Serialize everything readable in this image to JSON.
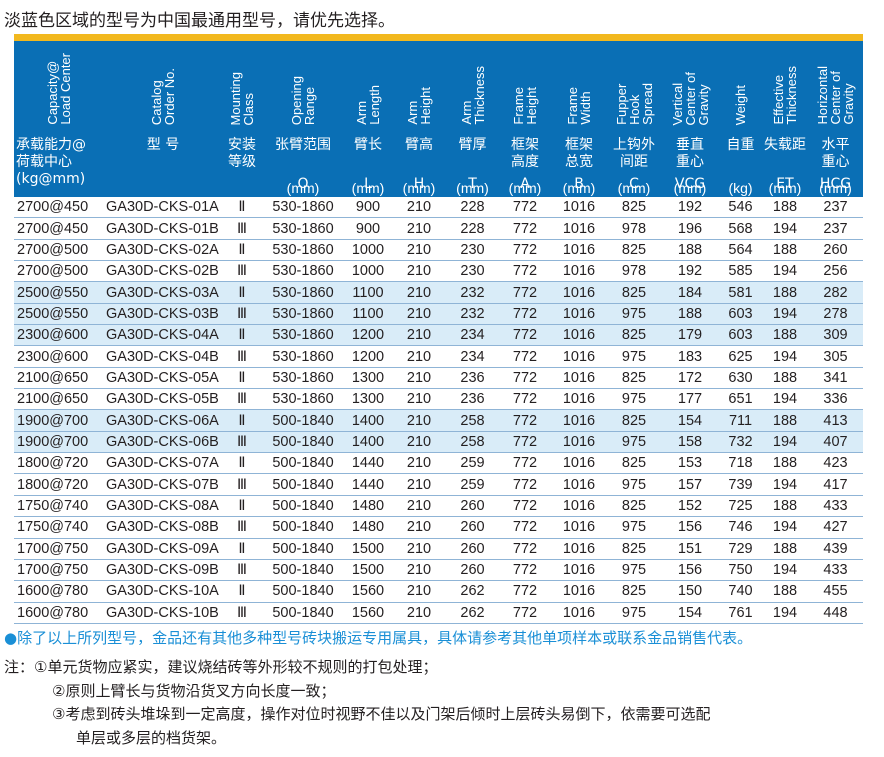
{
  "title": "淡蓝色区域的型号为中国最通用型号，请优先选择。",
  "accent_colors": {
    "header_blue": "#0a6fb5",
    "highlight_row": "#d9ecf8",
    "top_bar": "#f2b81e",
    "note_blue": "#1a8fd6"
  },
  "headers": [
    {
      "en": "Capacity@\nLoad Center",
      "cn": "承载能力@\n荷载中心\n(kg@mm)",
      "sym": "",
      "unit": ""
    },
    {
      "en": "Catalog\nOrder No.",
      "cn": "型 号",
      "sym": "",
      "unit": ""
    },
    {
      "en": "Mounting\nClass",
      "cn": "安装\n等级",
      "sym": "",
      "unit": ""
    },
    {
      "en": "Opening\nRange",
      "cn": "张臂范围",
      "sym": "O",
      "unit": "(mm)"
    },
    {
      "en": "Arm\nLength",
      "cn": "臂长",
      "sym": "L",
      "unit": "(mm)"
    },
    {
      "en": "Arm\nHeight",
      "cn": "臂高",
      "sym": "H",
      "unit": "(mm)"
    },
    {
      "en": "Arm\nThickness",
      "cn": "臂厚",
      "sym": "T",
      "unit": "(mm)"
    },
    {
      "en": "Frame\nHeight",
      "cn": "框架\n高度",
      "sym": "A",
      "unit": "(mm)"
    },
    {
      "en": "Frame\nWidth",
      "cn": "框架\n总宽",
      "sym": "B",
      "unit": "(mm)"
    },
    {
      "en": "Fupper\nHook\nSpread",
      "cn": "上钩外\n间距",
      "sym": "C",
      "unit": "(mm)"
    },
    {
      "en": "Vertical\nCenter of\nGravity",
      "cn": "垂直\n重心",
      "sym": "VCG",
      "unit": "(mm)"
    },
    {
      "en": "Weight",
      "cn": "自重",
      "sym": "",
      "unit": "(kg)"
    },
    {
      "en": "Effective\nThickness",
      "cn": "失载距",
      "sym": "ET",
      "unit": "(mm)"
    },
    {
      "en": "Horizontal\nCenter of\nGravity",
      "cn": "水平\n重心",
      "sym": "HCG",
      "unit": "(mm)"
    }
  ],
  "rows": [
    {
      "hl": false,
      "cells": [
        "2700@450",
        "GA30D-CKS-01A",
        "Ⅱ",
        "530-1860",
        "900",
        "210",
        "228",
        "772",
        "1016",
        "825",
        "192",
        "546",
        "188",
        "237"
      ]
    },
    {
      "hl": false,
      "cells": [
        "2700@450",
        "GA30D-CKS-01B",
        "Ⅲ",
        "530-1860",
        "900",
        "210",
        "228",
        "772",
        "1016",
        "978",
        "196",
        "568",
        "194",
        "237"
      ]
    },
    {
      "hl": false,
      "cells": [
        "2700@500",
        "GA30D-CKS-02A",
        "Ⅱ",
        "530-1860",
        "1000",
        "210",
        "230",
        "772",
        "1016",
        "825",
        "188",
        "564",
        "188",
        "260"
      ]
    },
    {
      "hl": false,
      "cells": [
        "2700@500",
        "GA30D-CKS-02B",
        "Ⅲ",
        "530-1860",
        "1000",
        "210",
        "230",
        "772",
        "1016",
        "978",
        "192",
        "585",
        "194",
        "256"
      ]
    },
    {
      "hl": true,
      "cells": [
        "2500@550",
        "GA30D-CKS-03A",
        "Ⅱ",
        "530-1860",
        "1100",
        "210",
        "232",
        "772",
        "1016",
        "825",
        "184",
        "581",
        "188",
        "282"
      ]
    },
    {
      "hl": true,
      "cells": [
        "2500@550",
        "GA30D-CKS-03B",
        "Ⅲ",
        "530-1860",
        "1100",
        "210",
        "232",
        "772",
        "1016",
        "975",
        "188",
        "603",
        "194",
        "278"
      ]
    },
    {
      "hl": true,
      "cells": [
        "2300@600",
        "GA30D-CKS-04A",
        "Ⅱ",
        "530-1860",
        "1200",
        "210",
        "234",
        "772",
        "1016",
        "825",
        "179",
        "603",
        "188",
        "309"
      ]
    },
    {
      "hl": false,
      "cells": [
        "2300@600",
        "GA30D-CKS-04B",
        "Ⅲ",
        "530-1860",
        "1200",
        "210",
        "234",
        "772",
        "1016",
        "975",
        "183",
        "625",
        "194",
        "305"
      ]
    },
    {
      "hl": false,
      "cells": [
        "2100@650",
        "GA30D-CKS-05A",
        "Ⅱ",
        "530-1860",
        "1300",
        "210",
        "236",
        "772",
        "1016",
        "825",
        "172",
        "630",
        "188",
        "341"
      ]
    },
    {
      "hl": false,
      "cells": [
        "2100@650",
        "GA30D-CKS-05B",
        "Ⅲ",
        "530-1860",
        "1300",
        "210",
        "236",
        "772",
        "1016",
        "975",
        "177",
        "651",
        "194",
        "336"
      ]
    },
    {
      "hl": true,
      "cells": [
        "1900@700",
        "GA30D-CKS-06A",
        "Ⅱ",
        "500-1840",
        "1400",
        "210",
        "258",
        "772",
        "1016",
        "825",
        "154",
        "711",
        "188",
        "413"
      ]
    },
    {
      "hl": true,
      "cells": [
        "1900@700",
        "GA30D-CKS-06B",
        "Ⅲ",
        "500-1840",
        "1400",
        "210",
        "258",
        "772",
        "1016",
        "975",
        "158",
        "732",
        "194",
        "407"
      ]
    },
    {
      "hl": false,
      "cells": [
        "1800@720",
        "GA30D-CKS-07A",
        "Ⅱ",
        "500-1840",
        "1440",
        "210",
        "259",
        "772",
        "1016",
        "825",
        "153",
        "718",
        "188",
        "423"
      ]
    },
    {
      "hl": false,
      "cells": [
        "1800@720",
        "GA30D-CKS-07B",
        "Ⅲ",
        "500-1840",
        "1440",
        "210",
        "259",
        "772",
        "1016",
        "975",
        "157",
        "739",
        "194",
        "417"
      ]
    },
    {
      "hl": false,
      "cells": [
        "1750@740",
        "GA30D-CKS-08A",
        "Ⅱ",
        "500-1840",
        "1480",
        "210",
        "260",
        "772",
        "1016",
        "825",
        "152",
        "725",
        "188",
        "433"
      ]
    },
    {
      "hl": false,
      "cells": [
        "1750@740",
        "GA30D-CKS-08B",
        "Ⅲ",
        "500-1840",
        "1480",
        "210",
        "260",
        "772",
        "1016",
        "975",
        "156",
        "746",
        "194",
        "427"
      ]
    },
    {
      "hl": false,
      "cells": [
        "1700@750",
        "GA30D-CKS-09A",
        "Ⅱ",
        "500-1840",
        "1500",
        "210",
        "260",
        "772",
        "1016",
        "825",
        "151",
        "729",
        "188",
        "439"
      ]
    },
    {
      "hl": false,
      "cells": [
        "1700@750",
        "GA30D-CKS-09B",
        "Ⅲ",
        "500-1840",
        "1500",
        "210",
        "260",
        "772",
        "1016",
        "975",
        "156",
        "750",
        "194",
        "433"
      ]
    },
    {
      "hl": false,
      "cells": [
        "1600@780",
        "GA30D-CKS-10A",
        "Ⅱ",
        "500-1840",
        "1560",
        "210",
        "262",
        "772",
        "1016",
        "825",
        "150",
        "740",
        "188",
        "455"
      ]
    },
    {
      "hl": false,
      "cells": [
        "1600@780",
        "GA30D-CKS-10B",
        "Ⅲ",
        "500-1840",
        "1560",
        "210",
        "262",
        "772",
        "1016",
        "975",
        "154",
        "761",
        "194",
        "448"
      ]
    }
  ],
  "note_main": "●除了以上所列型号，金品还有其他多种型号砖块搬运专用属具，具体请参考其他单项样本或联系金品销售代表。",
  "notes": [
    "注：①单元货物应紧实，建议烧结砖等外形较不规则的打包处理；",
    "②原则上臂长与货物沿货叉方向长度一致；",
    "③考虑到砖头堆垛到一定高度，操作对位时视野不佳以及门架后倾时上层砖头易倒下，依需要可选配",
    "单层或多层的档货架。"
  ]
}
